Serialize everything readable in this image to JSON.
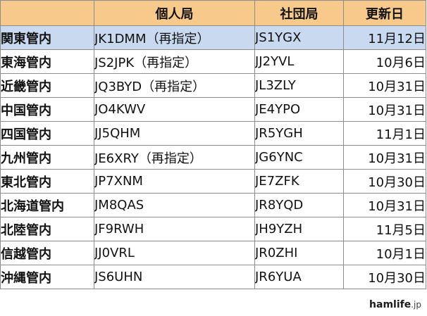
{
  "headers": {
    "region": "",
    "personal": "個人局",
    "club": "社団局",
    "updated": "更新日"
  },
  "rows": [
    {
      "region": "関東管内",
      "personal": "JK1DMM（再指定）",
      "club": "JS1YGX",
      "updated": "11月12日",
      "highlight": true
    },
    {
      "region": "東海管内",
      "personal": "JS2JPK（再指定）",
      "club": "JJ2YVL",
      "updated": "10月6日"
    },
    {
      "region": "近畿管内",
      "personal": "JQ3BYD（再指定）",
      "club": "JL3ZLY",
      "updated": "10月31日"
    },
    {
      "region": "中国管内",
      "personal": "JO4KWV",
      "club": "JE4YPO",
      "updated": "10月31日"
    },
    {
      "region": "四国管内",
      "personal": "JJ5QHM",
      "club": "JR5YGH",
      "updated": "11月1日"
    },
    {
      "region": "九州管内",
      "personal": "JE6XRY（再指定）",
      "club": "JG6YNC",
      "updated": "10月31日"
    },
    {
      "region": "東北管内",
      "personal": "JP7XNM",
      "club": "JE7ZFK",
      "updated": "10月30日"
    },
    {
      "region": "北海道管内",
      "personal": "JM8QAS",
      "club": "JR8YQD",
      "updated": "10月31日"
    },
    {
      "region": "北陸管内",
      "personal": "JF9RWH",
      "club": "JH9YZH",
      "updated": "11月5日"
    },
    {
      "region": "信越管内",
      "personal": "JJ0VRL",
      "club": "JR0ZHI",
      "updated": "10月1日"
    },
    {
      "region": "沖縄管内",
      "personal": "JS6UHN",
      "club": "JR6YUA",
      "updated": "10月30日"
    }
  ],
  "watermark": {
    "brand": "hamlife",
    "domain": ".jp"
  },
  "colors": {
    "header_bg": "#f7c98b",
    "highlight_row_bg": "#c9d9ef",
    "border": "#8c8c8c"
  }
}
